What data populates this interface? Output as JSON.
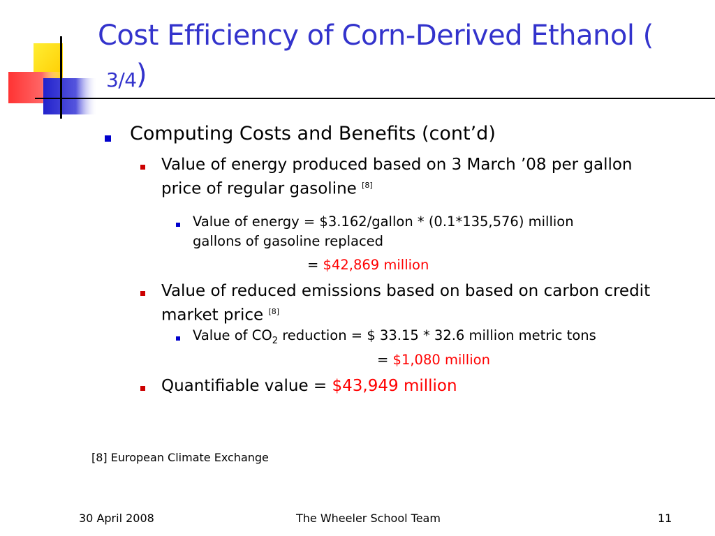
{
  "slide": {
    "title_main": "Cost Efficiency of Corn-Derived Ethanol (",
    "title_fraction": "3/4",
    "title_close": ")",
    "heading": "Computing Costs and Benefits (cont’d)",
    "energy_line1": "Value of energy produced based on 3 March ’08 per gallon",
    "energy_line2": "price of regular gasoline",
    "energy_ref": "[8]",
    "energy_calc_line1": "Value of energy = $3.162/gallon * (0.1*135,576) million",
    "energy_calc_line2": "gallons of gasoline replaced",
    "energy_result_eq": "= ",
    "energy_result": "$42,869 million",
    "emissions_line1": "Value of reduced emissions based on based on carbon credit",
    "emissions_line2": "market price",
    "emissions_ref": "[8]",
    "co2_prefix": "Value of CO",
    "co2_sub": "2",
    "co2_suffix": " reduction = $ 33.15 * 32.6 million metric tons",
    "co2_result_eq": "= ",
    "co2_result": "$1,080 million",
    "quant_label": "Quantifiable value = ",
    "quant_value": "$43,949 million",
    "footnote": "[8] European Climate Exchange"
  },
  "footer": {
    "date": "30 April 2008",
    "team": "The Wheeler School Team",
    "page": "11"
  },
  "colors": {
    "title": "#3333cc",
    "bullet_l1": "#0000cc",
    "bullet_l2": "#cc0000",
    "bullet_l3": "#0000cc",
    "highlight": "#ff0000"
  }
}
